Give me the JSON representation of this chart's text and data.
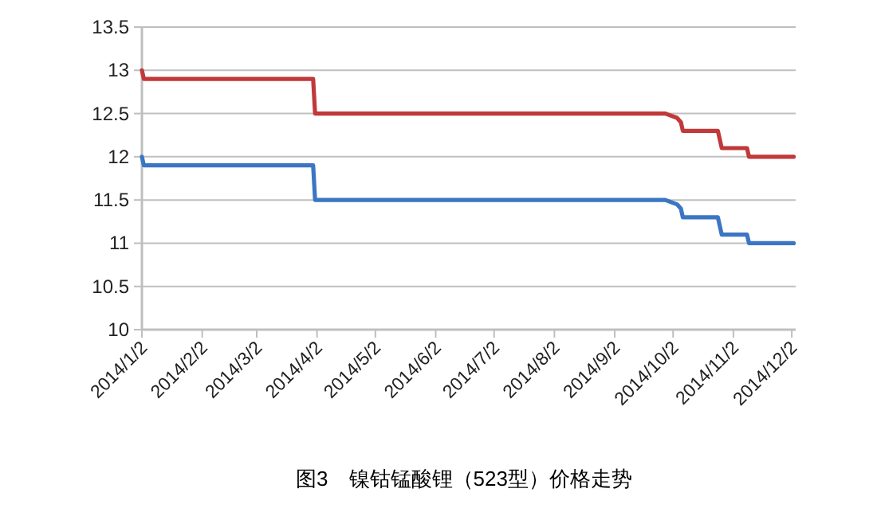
{
  "chart_data": {
    "type": "line",
    "title": "图3　镍钴锰酸锂（523型）价格走势",
    "xlim": [
      "2014-01-02",
      "2014-12-04"
    ],
    "xticks": [
      {
        "value": "2014-01-02",
        "label": "2014/1/2"
      },
      {
        "value": "2014-02-02",
        "label": "2014/2/2"
      },
      {
        "value": "2014-03-02",
        "label": "2014/3/2"
      },
      {
        "value": "2014-04-02",
        "label": "2014/4/2"
      },
      {
        "value": "2014-05-02",
        "label": "2014/5/2"
      },
      {
        "value": "2014-06-02",
        "label": "2014/6/2"
      },
      {
        "value": "2014-07-02",
        "label": "2014/7/2"
      },
      {
        "value": "2014-08-02",
        "label": "2014/8/2"
      },
      {
        "value": "2014-09-02",
        "label": "2014/9/2"
      },
      {
        "value": "2014-10-02",
        "label": "2014/10/2"
      },
      {
        "value": "2014-11-02",
        "label": "2014/11/2"
      },
      {
        "value": "2014-12-02",
        "label": "2014/12/2"
      }
    ],
    "ylim": [
      10,
      13.5
    ],
    "yticks": [
      10,
      10.5,
      11,
      11.5,
      12,
      12.5,
      13,
      13.5
    ],
    "grid": "y",
    "marker": "none",
    "line_style": "solid",
    "series": [
      {
        "color": "#c0393b",
        "x": [
          "2014-01-02",
          "2014-01-03",
          "2014-03-31",
          "2014-04-01",
          "2014-09-28",
          "2014-10-04",
          "2014-10-06",
          "2014-10-07",
          "2014-10-25",
          "2014-10-27",
          "2014-11-09",
          "2014-11-10",
          "2014-12-03"
        ],
        "values": [
          13.0,
          12.9,
          12.9,
          12.5,
          12.5,
          12.45,
          12.4,
          12.3,
          12.3,
          12.1,
          12.1,
          12.0,
          12.0
        ]
      },
      {
        "color": "#3a76c4",
        "x": [
          "2014-01-02",
          "2014-01-03",
          "2014-03-31",
          "2014-04-01",
          "2014-09-28",
          "2014-10-04",
          "2014-10-06",
          "2014-10-07",
          "2014-10-25",
          "2014-10-27",
          "2014-11-09",
          "2014-11-10",
          "2014-12-03"
        ],
        "values": [
          12.0,
          11.9,
          11.9,
          11.5,
          11.5,
          11.45,
          11.4,
          11.3,
          11.3,
          11.1,
          11.1,
          11.0,
          11.0
        ]
      }
    ]
  }
}
